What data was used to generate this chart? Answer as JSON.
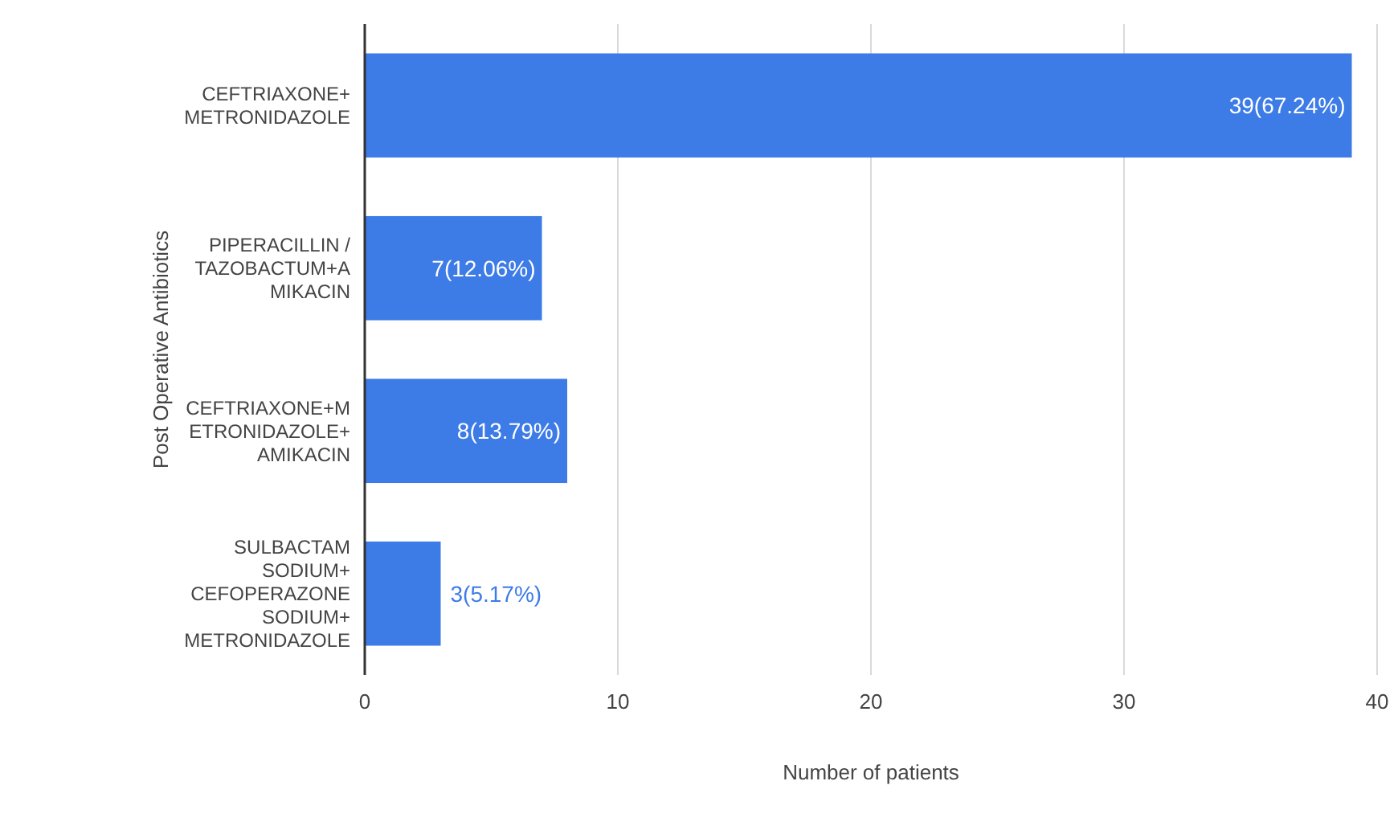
{
  "chart_data": {
    "type": "bar",
    "orientation": "horizontal",
    "xlabel": "Number of patients",
    "ylabel": "Post Operative Antibiotics",
    "categories": [
      "CEFTRIAXONE+\nMETRONIDAZOLE",
      "PIPERACILLIN /\nTAZOBACTUM+A\nMIKACIN",
      "CEFTRIAXONE+M\nETRONIDAZOLE+\nAMIKACIN",
      "SULBACTAM\nSODIUM+\nCEFOPERAZONE\nSODIUM+\nMETRONIDAZOLE"
    ],
    "values": [
      39,
      7,
      8,
      3
    ],
    "color": "#3d7be6",
    "value_labels": [
      "39(67.24%)",
      "7(12.06%)",
      "8(13.79%)",
      "3(5.17%)"
    ],
    "xlim": [
      0,
      40
    ],
    "xticks": [
      0,
      10,
      20,
      30,
      40
    ],
    "grid": "x"
  }
}
